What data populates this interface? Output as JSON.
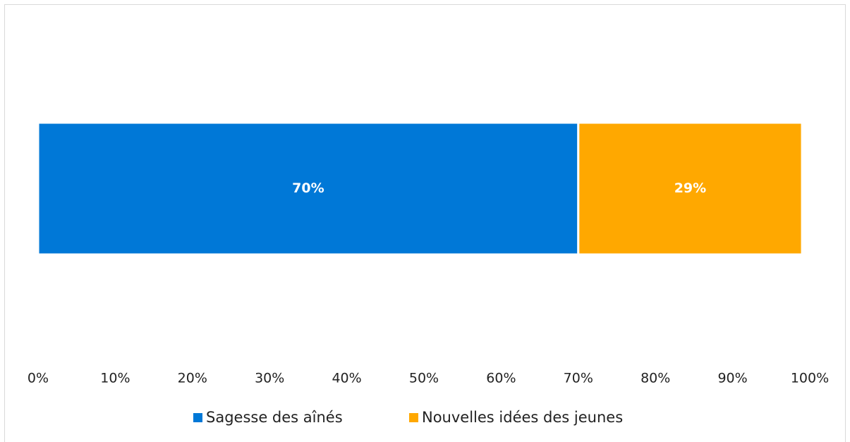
{
  "chart_data": {
    "type": "stacked-bar-horizontal",
    "categories": [
      null
    ],
    "series": [
      {
        "name": "Sagesse des aînés",
        "color": "#0078d7",
        "values": [
          70
        ],
        "value_labels": [
          "70%"
        ]
      },
      {
        "name": "Nouvelles idées des jeunes",
        "color": "#ffa800",
        "values": [
          29
        ],
        "value_labels": [
          "29%"
        ]
      }
    ],
    "xlim": [
      0,
      100
    ],
    "xticks": [
      {
        "value": 0,
        "label": "0%"
      },
      {
        "value": 10,
        "label": "10%"
      },
      {
        "value": 20,
        "label": "20%"
      },
      {
        "value": 30,
        "label": "30%"
      },
      {
        "value": 40,
        "label": "40%"
      },
      {
        "value": 50,
        "label": "50%"
      },
      {
        "value": 60,
        "label": "60%"
      },
      {
        "value": 70,
        "label": "70%"
      },
      {
        "value": 80,
        "label": "80%"
      },
      {
        "value": 90,
        "label": "90%"
      },
      {
        "value": 100,
        "label": "100%"
      }
    ],
    "legend": "bottom"
  }
}
